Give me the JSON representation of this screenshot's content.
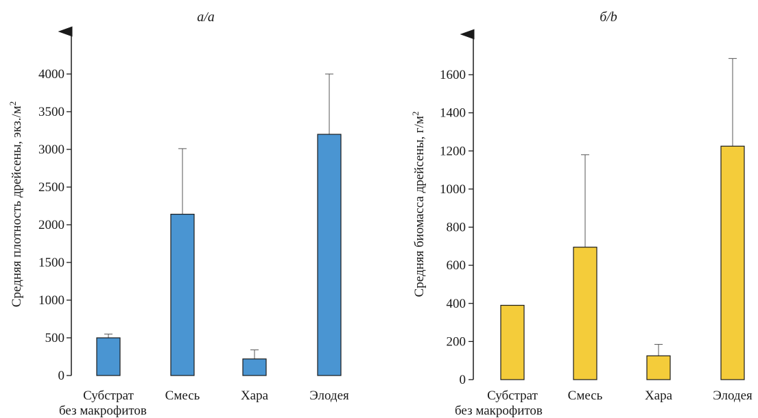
{
  "chart_data": [
    {
      "type": "bar",
      "title": "а/a",
      "ylabel": "Средняя плотность дрейсены, экз./м²",
      "xlabel": "",
      "categories": [
        "Субстрат\nбез макрофитов",
        "Смесь",
        "Хара",
        "Элодея"
      ],
      "values": [
        500,
        2140,
        220,
        3200
      ],
      "error_upper": [
        550,
        3010,
        340,
        4000
      ],
      "ylim": [
        0,
        4300
      ],
      "yticks": [
        0,
        500,
        1000,
        1500,
        2000,
        2500,
        3000,
        3500,
        4000
      ],
      "bar_color": "#4a95d2",
      "grid": false,
      "legend": "none"
    },
    {
      "type": "bar",
      "title": "б/b",
      "ylabel": "Средняя биомасса дрейсены, г/м²",
      "xlabel": "",
      "categories": [
        "Субстрат\nбез макрофитов",
        "Смесь",
        "Хара",
        "Элодея"
      ],
      "values": [
        390,
        695,
        125,
        1225
      ],
      "error_upper": [
        390,
        1180,
        185,
        1685
      ],
      "ylim": [
        0,
        1740
      ],
      "yticks": [
        0,
        200,
        400,
        600,
        800,
        1000,
        1200,
        1400,
        1600
      ],
      "bar_color": "#f4cc3a",
      "grid": false,
      "legend": "none"
    }
  ]
}
